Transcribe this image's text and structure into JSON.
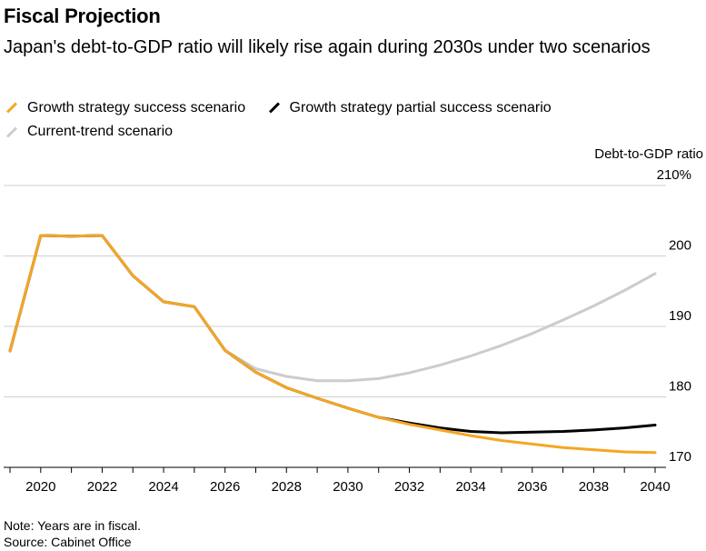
{
  "header": {
    "title": "Fiscal Projection",
    "subtitle": "Japan's debt-to-GDP ratio will likely rise again during 2030s under two scenarios"
  },
  "legend": [
    {
      "label": "Growth strategy success scenario",
      "color": "#f5a623"
    },
    {
      "label": "Growth strategy partial success scenario",
      "color": "#000000"
    },
    {
      "label": "Current-trend scenario",
      "color": "#cccccc"
    }
  ],
  "footer": {
    "note": "Note: Years are in fiscal.",
    "source": "Source: Cabinet Office"
  },
  "chart_data": {
    "type": "line",
    "ylabel": "Debt-to-GDP ratio",
    "ylim": [
      170,
      210
    ],
    "xlim": [
      2019,
      2040
    ],
    "yticks": [
      {
        "value": 210,
        "label": "210%"
      },
      {
        "value": 200,
        "label": "200"
      },
      {
        "value": 190,
        "label": "190"
      },
      {
        "value": 180,
        "label": "180"
      },
      {
        "value": 170,
        "label": "170"
      }
    ],
    "xticks": [
      2020,
      2022,
      2024,
      2026,
      2028,
      2030,
      2032,
      2034,
      2036,
      2038,
      2040
    ],
    "grid": true,
    "legend_position": "top",
    "x": [
      2019,
      2020,
      2021,
      2022,
      2023,
      2024,
      2025,
      2026,
      2027,
      2028,
      2029,
      2030,
      2031,
      2032,
      2033,
      2034,
      2035,
      2036,
      2037,
      2038,
      2039,
      2040
    ],
    "series": [
      {
        "name": "Current-trend scenario",
        "color": "#cccccc",
        "values": [
          186.5,
          202.9,
          202.8,
          202.9,
          197.2,
          193.5,
          192.8,
          186.6,
          184.0,
          182.9,
          182.3,
          182.3,
          182.6,
          183.4,
          184.5,
          185.8,
          187.3,
          189.0,
          190.9,
          192.9,
          195.1,
          197.5
        ]
      },
      {
        "name": "Growth strategy partial success scenario",
        "color": "#000000",
        "values": [
          186.5,
          202.9,
          202.8,
          202.9,
          197.2,
          193.5,
          192.8,
          186.6,
          183.5,
          181.3,
          179.8,
          178.4,
          177.1,
          176.3,
          175.6,
          175.1,
          174.9,
          175.0,
          175.1,
          175.3,
          175.6,
          176.0
        ]
      },
      {
        "name": "Growth strategy success scenario",
        "color": "#f5a623",
        "values": [
          186.5,
          202.9,
          202.8,
          202.9,
          197.2,
          193.5,
          192.8,
          186.6,
          183.5,
          181.3,
          179.8,
          178.4,
          177.1,
          176.1,
          175.3,
          174.5,
          173.8,
          173.3,
          172.8,
          172.5,
          172.2,
          172.1
        ]
      }
    ]
  }
}
